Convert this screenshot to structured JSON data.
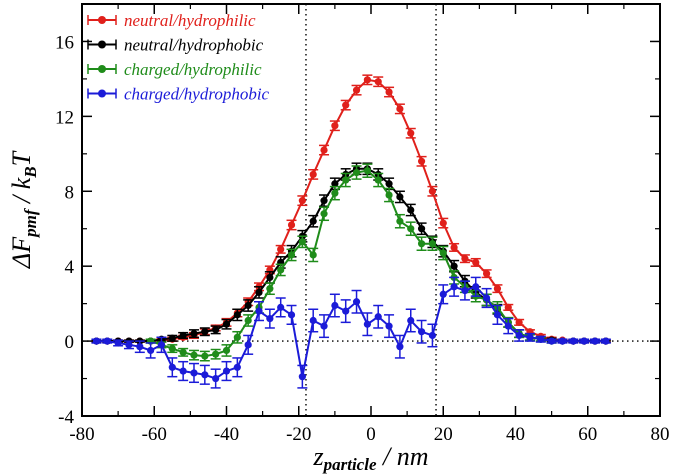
{
  "chart_data": {
    "type": "line",
    "title": "",
    "xlabel": {
      "main": "z",
      "sub": "particle",
      "rest": " / nm"
    },
    "ylabel": {
      "prefix": "ΔF",
      "sub": "pmf",
      "rest": " / k",
      "sub2": "B",
      "suffix": "T"
    },
    "xlim": [
      -80,
      80
    ],
    "ylim": [
      -4,
      18
    ],
    "xticks": [
      -80,
      -60,
      -40,
      -20,
      0,
      20,
      40,
      60,
      80
    ],
    "yticks": [
      -4,
      0,
      4,
      8,
      12,
      16
    ],
    "grid": false,
    "legend_position": "top-left",
    "reference_lines": {
      "horizontal": [
        0
      ],
      "vertical": [
        -18,
        18
      ]
    },
    "series": [
      {
        "name": "neutral/hydrophilic",
        "color": "#e0201b",
        "x": [
          -76,
          -73,
          -70,
          -67,
          -64,
          -61,
          -58,
          -55,
          -52,
          -49,
          -46,
          -43,
          -40,
          -37,
          -34,
          -31,
          -28,
          -25,
          -22,
          -19,
          -16,
          -13,
          -10,
          -7,
          -4,
          -1,
          2,
          5,
          8,
          11,
          14,
          17,
          20,
          23,
          26,
          29,
          32,
          35,
          38,
          41,
          44,
          47,
          50,
          53,
          56,
          59,
          62,
          65
        ],
        "y": [
          0,
          0,
          0,
          0,
          0,
          0,
          0.05,
          0.1,
          0.2,
          0.3,
          0.5,
          0.7,
          1.0,
          1.5,
          2.1,
          2.9,
          3.8,
          4.9,
          6.2,
          7.5,
          8.9,
          10.2,
          11.5,
          12.6,
          13.4,
          13.95,
          13.85,
          13.3,
          12.4,
          11.1,
          9.6,
          8.0,
          6.3,
          5.0,
          4.4,
          4.2,
          3.6,
          2.8,
          1.8,
          1.0,
          0.5,
          0.25,
          0.1,
          0.05,
          0,
          0,
          0,
          0
        ],
        "err": [
          0.05,
          0.05,
          0.05,
          0.05,
          0.05,
          0.05,
          0.1,
          0.1,
          0.1,
          0.15,
          0.15,
          0.15,
          0.2,
          0.2,
          0.2,
          0.2,
          0.2,
          0.2,
          0.25,
          0.25,
          0.25,
          0.25,
          0.25,
          0.25,
          0.25,
          0.25,
          0.25,
          0.25,
          0.25,
          0.25,
          0.25,
          0.25,
          0.25,
          0.2,
          0.2,
          0.2,
          0.2,
          0.2,
          0.15,
          0.15,
          0.1,
          0.1,
          0.1,
          0.05,
          0.05,
          0.05,
          0.05,
          0.05
        ]
      },
      {
        "name": "neutral/hydrophobic",
        "color": "#000000",
        "x": [
          -76,
          -73,
          -70,
          -67,
          -64,
          -61,
          -58,
          -55,
          -52,
          -49,
          -46,
          -43,
          -40,
          -37,
          -34,
          -31,
          -28,
          -25,
          -22,
          -19,
          -16,
          -13,
          -10,
          -7,
          -4,
          -1,
          2,
          5,
          8,
          11,
          14,
          17,
          20,
          23,
          26,
          29,
          32,
          35,
          38,
          41,
          44,
          47,
          50,
          53,
          56,
          59,
          62,
          65
        ],
        "y": [
          0,
          0,
          0,
          0,
          0,
          0,
          0.1,
          0.15,
          0.3,
          0.4,
          0.5,
          0.6,
          0.9,
          1.4,
          1.9,
          2.6,
          3.4,
          4.2,
          4.8,
          5.6,
          6.4,
          7.5,
          8.4,
          8.9,
          9.2,
          9.2,
          8.9,
          8.4,
          7.7,
          7.0,
          6.0,
          5.3,
          4.8,
          4.0,
          3.2,
          2.6,
          2.2,
          1.7,
          1.0,
          0.4,
          0.2,
          0.1,
          0.05,
          0,
          0,
          0,
          0,
          0
        ],
        "err": [
          0.05,
          0.05,
          0.05,
          0.05,
          0.05,
          0.05,
          0.1,
          0.15,
          0.15,
          0.2,
          0.2,
          0.2,
          0.25,
          0.3,
          0.3,
          0.3,
          0.3,
          0.3,
          0.3,
          0.3,
          0.3,
          0.3,
          0.3,
          0.3,
          0.3,
          0.3,
          0.3,
          0.3,
          0.3,
          0.3,
          0.3,
          0.3,
          0.3,
          0.3,
          0.3,
          0.3,
          0.3,
          0.25,
          0.25,
          0.2,
          0.15,
          0.1,
          0.1,
          0.05,
          0.05,
          0.05,
          0.05,
          0.05
        ]
      },
      {
        "name": "charged/hydrophilic",
        "color": "#1f8c1a",
        "x": [
          -61,
          -58,
          -55,
          -52,
          -49,
          -46,
          -43,
          -40,
          -37,
          -34,
          -31,
          -28,
          -25,
          -22,
          -19,
          -16,
          -13,
          -10,
          -7,
          -4,
          -1,
          2,
          5,
          8,
          11,
          14,
          17,
          20,
          23,
          26,
          29,
          32,
          35,
          38,
          41,
          44,
          47,
          50
        ],
        "y": [
          0,
          -0.2,
          -0.4,
          -0.6,
          -0.75,
          -0.8,
          -0.7,
          -0.5,
          0.2,
          1.1,
          1.8,
          2.8,
          3.8,
          4.6,
          5.3,
          4.6,
          6.8,
          7.9,
          8.6,
          9.0,
          9.1,
          8.6,
          7.8,
          6.4,
          6.0,
          5.2,
          5.2,
          4.7,
          3.4,
          2.9,
          2.4,
          2.2,
          1.8,
          1.0,
          0.4,
          0.2,
          0.1,
          0
        ],
        "err": [
          0.1,
          0.15,
          0.2,
          0.2,
          0.25,
          0.25,
          0.25,
          0.3,
          0.3,
          0.3,
          0.3,
          0.3,
          0.3,
          0.3,
          0.3,
          0.35,
          0.35,
          0.35,
          0.35,
          0.35,
          0.35,
          0.35,
          0.35,
          0.35,
          0.35,
          0.35,
          0.35,
          0.35,
          0.35,
          0.3,
          0.3,
          0.3,
          0.3,
          0.25,
          0.2,
          0.15,
          0.1,
          0.1
        ]
      },
      {
        "name": "charged/hydrophobic",
        "color": "#1b1bd8",
        "x": [
          -76,
          -73,
          -70,
          -67,
          -64,
          -61,
          -58,
          -55,
          -52,
          -49,
          -46,
          -43,
          -40,
          -37,
          -34,
          -31,
          -28,
          -25,
          -22,
          -19,
          -16,
          -13,
          -10,
          -7,
          -4,
          -1,
          2,
          5,
          8,
          11,
          14,
          17,
          20,
          23,
          26,
          29,
          32,
          35,
          38,
          41,
          44,
          47,
          50,
          53,
          56,
          59,
          62,
          65
        ],
        "y": [
          0,
          0,
          -0.1,
          -0.2,
          -0.3,
          -0.5,
          -0.2,
          -1.4,
          -1.6,
          -1.7,
          -1.8,
          -2.0,
          -1.6,
          -1.4,
          -0.2,
          1.6,
          1.2,
          1.8,
          1.4,
          -1.9,
          1.1,
          0.8,
          1.9,
          1.6,
          2.1,
          0.9,
          1.3,
          0.8,
          -0.3,
          1.1,
          0.5,
          0.3,
          2.5,
          2.9,
          2.7,
          2.9,
          2.3,
          1.4,
          0.8,
          0.3,
          0.2,
          0.1,
          0,
          0,
          0,
          0,
          0,
          0
        ],
        "err": [
          0.1,
          0.1,
          0.15,
          0.2,
          0.3,
          0.4,
          0.4,
          0.5,
          0.5,
          0.5,
          0.5,
          0.5,
          0.5,
          0.5,
          0.5,
          0.5,
          0.5,
          0.5,
          0.5,
          0.6,
          0.6,
          0.6,
          0.6,
          0.6,
          0.6,
          0.6,
          0.6,
          0.6,
          0.6,
          0.6,
          0.6,
          0.6,
          0.5,
          0.5,
          0.5,
          0.5,
          0.5,
          0.5,
          0.4,
          0.3,
          0.2,
          0.15,
          0.1,
          0.1,
          0.1,
          0.1,
          0.1,
          0.1
        ]
      }
    ]
  }
}
